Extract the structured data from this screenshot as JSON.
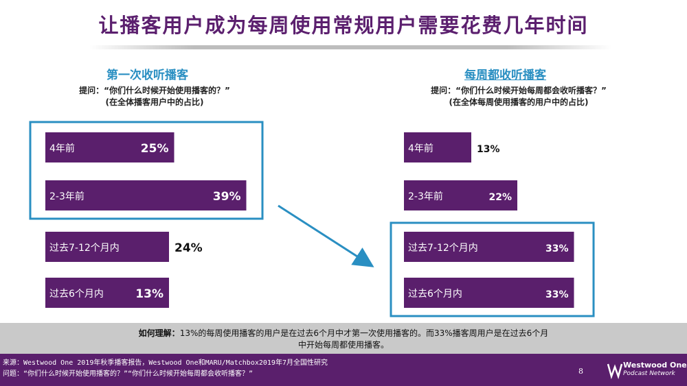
{
  "title": "让播客用户成为每周使用常规用户需要花费几年时间",
  "left": {
    "heading": "第一次收听播客",
    "question": "提问：“你们什么时候开始使用播客的？”",
    "note": "(在全体播客用户中的占比)"
  },
  "right": {
    "heading": "每周都收听播客",
    "question": "提问：“你们什么时候开始每周都会收听播客？”",
    "note": "(在全体每周使用播客的用户中的占比)"
  },
  "chart_data": [
    {
      "type": "bar",
      "orientation": "horizontal",
      "title": "第一次收听播客",
      "categories": [
        "4年前",
        "2-3年前",
        "过去7-12个月内",
        "过去6个月内"
      ],
      "values": [
        25,
        39,
        24,
        13
      ],
      "labels": [
        "25%",
        "39%",
        "24%",
        "13%"
      ],
      "highlight": [
        "4年前",
        "2-3年前"
      ],
      "bar_color": "#5a1f6c"
    },
    {
      "type": "bar",
      "orientation": "horizontal",
      "title": "每周都收听播客",
      "categories": [
        "4年前",
        "2-3年前",
        "过去7-12个月内",
        "过去6个月内"
      ],
      "values": [
        13,
        22,
        33,
        33
      ],
      "labels": [
        "13%",
        "22%",
        "33%",
        "33%"
      ],
      "highlight": [
        "过去7-12个月内",
        "过去6个月内"
      ],
      "bar_color": "#5a1f6c"
    }
  ],
  "colors": {
    "accent": "#2a8fc2",
    "brand": "#5a1f6c",
    "band": "#c9c9c9"
  },
  "insight": {
    "label": "如何理解：",
    "line1": "13%的每周使用播客的用户是在过去6个月中才第一次使用播客的。而33%播客周用户是在过去6个月",
    "line2": "中开始每周都使用播客。"
  },
  "footer": {
    "source": "来源：Westwood One 2019年秋季播客报告，Westwood One和MARU/Matchbox2019年7月全国性研究",
    "question": "问题：“你们什么时候开始使用播客的？”“你们什么时候开始每周都会收听播客？”",
    "page": "8",
    "logo_title": "Westwood One",
    "logo_sub": "Podcast Network"
  }
}
